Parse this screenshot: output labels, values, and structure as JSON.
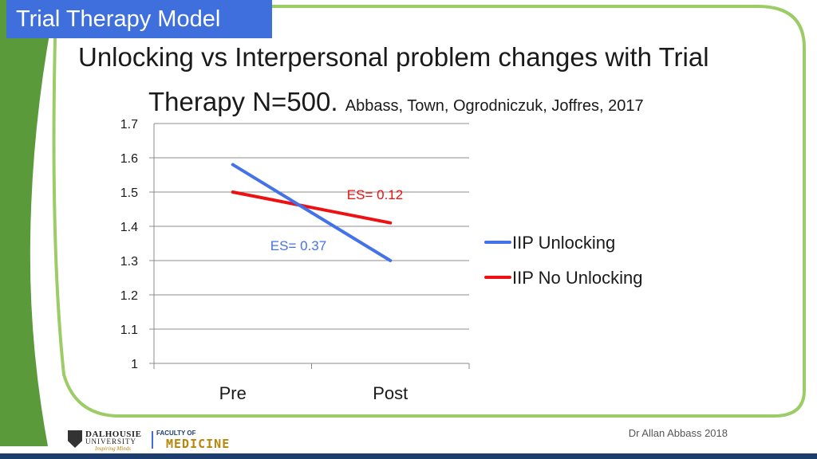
{
  "slide": {
    "section_tab": "Trial Therapy Model",
    "headline_line1": "Unlocking vs Interpersonal problem changes with Trial",
    "headline_line2": "Therapy N=500.",
    "citation": "Abbass, Town, Ogrodniczuk, Joffres, 2017",
    "footer_credit": "Dr Allan Abbass 2018",
    "colors": {
      "tab": "#3f6fdc",
      "green": "#5b9a3a",
      "footer_bar": "#1c3d6e"
    }
  },
  "logos": {
    "dalhousie_line1": "DALHOUSIE",
    "dalhousie_line2": "UNIVERSITY",
    "dalhousie_tagline": "Inspiring Minds",
    "faculty_line1": "FACULTY OF",
    "faculty_line2": "MEDICINE"
  },
  "chart_data": {
    "type": "line",
    "categories": [
      "Pre",
      "Post"
    ],
    "ylim": [
      1,
      1.7
    ],
    "yticks": [
      "1",
      "1.1",
      "1.2",
      "1.3",
      "1.4",
      "1.5",
      "1.6",
      "1.7"
    ],
    "grid": true,
    "legend_position": "right",
    "series": [
      {
        "name": "IIP Unlocking",
        "values": [
          1.58,
          1.3
        ],
        "color": "#4472e8",
        "annotation": "ES= 0.37"
      },
      {
        "name": "IIP No Unlocking",
        "values": [
          1.5,
          1.41
        ],
        "color": "#ee1111",
        "annotation": "ES= 0.12"
      }
    ]
  }
}
